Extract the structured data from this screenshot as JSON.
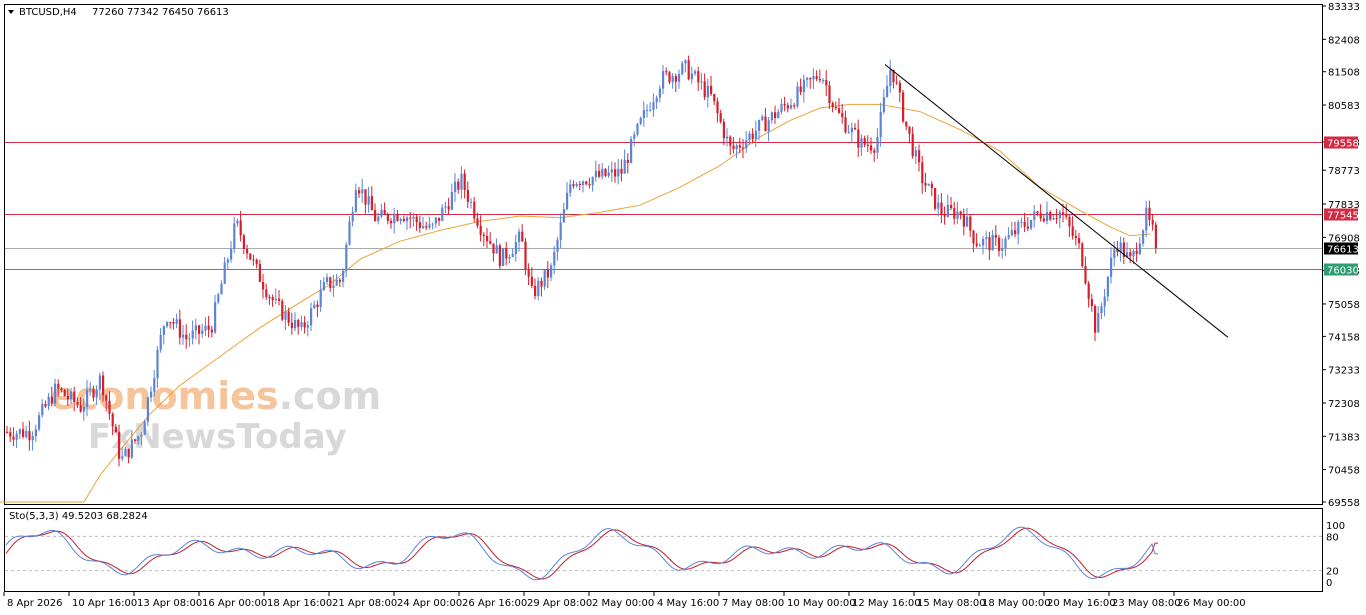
{
  "header": {
    "symbol": "BTCUSD,H4",
    "ohlc": "77260 77342 76450 76613"
  },
  "watermark": {
    "line1a": "economies",
    "line1b": ".com",
    "line2": "FxNewsToday",
    "color1": "#f5c49a",
    "color2": "#d8d8d8"
  },
  "colors": {
    "bull": "#5b84d6",
    "bear": "#d71e2b",
    "ma": "#e8a53a",
    "resistance": "#d12a43",
    "support": "#2e9e72",
    "current": "#aaaaaa",
    "trendline": "#000000",
    "stoch_main": "#5b84d6",
    "stoch_signal": "#c41e2c"
  },
  "chart_data": {
    "type": "candlestick",
    "y_range": [
      69558,
      83333
    ],
    "price_ticks": [
      "83333",
      "82408",
      "81508",
      "80583",
      "79558",
      "78773",
      "77833",
      "76908",
      "75983",
      "75058",
      "74158",
      "73233",
      "72308",
      "71383",
      "70458",
      "69558"
    ],
    "x_ticks": [
      "8 Apr 2026",
      "10 Apr 16:00",
      "13 Apr 08:00",
      "16 Apr 00:00",
      "18 Apr 16:00",
      "21 Apr 08:00",
      "24 Apr 00:00",
      "26 Apr 16:00",
      "29 Apr 08:00",
      "2 May 00:00",
      "4 May 16:00",
      "7 May 08:00",
      "10 May 00:00",
      "12 May 16:00",
      "15 May 08:00",
      "18 May 00:00",
      "20 May 16:00",
      "23 May 08:00",
      "26 May 00:00"
    ],
    "moving_average": [
      [
        0,
        69558
      ],
      [
        84,
        69558
      ],
      [
        100,
        70300
      ],
      [
        120,
        71000
      ],
      [
        150,
        72000
      ],
      [
        180,
        72800
      ],
      [
        220,
        73600
      ],
      [
        260,
        74400
      ],
      [
        300,
        75100
      ],
      [
        330,
        75600
      ],
      [
        360,
        76300
      ],
      [
        400,
        76800
      ],
      [
        440,
        77100
      ],
      [
        480,
        77350
      ],
      [
        520,
        77500
      ],
      [
        560,
        77450
      ],
      [
        600,
        77600
      ],
      [
        640,
        77800
      ],
      [
        680,
        78300
      ],
      [
        720,
        78900
      ],
      [
        760,
        79700
      ],
      [
        790,
        80150
      ],
      [
        820,
        80500
      ],
      [
        850,
        80600
      ],
      [
        880,
        80600
      ],
      [
        920,
        80400
      ],
      [
        960,
        79900
      ],
      [
        1000,
        79300
      ],
      [
        1040,
        78300
      ],
      [
        1080,
        77650
      ],
      [
        1110,
        77200
      ],
      [
        1130,
        76950
      ],
      [
        1150,
        77000
      ]
    ],
    "key_points": [
      [
        5,
        71500
      ],
      [
        30,
        71500
      ],
      [
        55,
        72700
      ],
      [
        80,
        72200
      ],
      [
        100,
        73000
      ],
      [
        120,
        70700
      ],
      [
        140,
        71500
      ],
      [
        165,
        74800
      ],
      [
        185,
        74100
      ],
      [
        210,
        74400
      ],
      [
        235,
        77300
      ],
      [
        255,
        76000
      ],
      [
        275,
        75000
      ],
      [
        300,
        74300
      ],
      [
        325,
        75600
      ],
      [
        340,
        75700
      ],
      [
        355,
        78500
      ],
      [
        375,
        77400
      ],
      [
        400,
        77600
      ],
      [
        430,
        77100
      ],
      [
        460,
        78500
      ],
      [
        480,
        77200
      ],
      [
        500,
        76300
      ],
      [
        520,
        76900
      ],
      [
        530,
        75300
      ],
      [
        550,
        76000
      ],
      [
        570,
        78500
      ],
      [
        600,
        78600
      ],
      [
        620,
        78700
      ],
      [
        640,
        80100
      ],
      [
        660,
        81300
      ],
      [
        685,
        81600
      ],
      [
        710,
        80800
      ],
      [
        730,
        79300
      ],
      [
        760,
        80000
      ],
      [
        790,
        80700
      ],
      [
        820,
        81500
      ],
      [
        835,
        80400
      ],
      [
        860,
        79500
      ],
      [
        875,
        79500
      ],
      [
        890,
        81700
      ],
      [
        905,
        80000
      ],
      [
        920,
        78600
      ],
      [
        940,
        77600
      ],
      [
        960,
        77600
      ],
      [
        975,
        76800
      ],
      [
        1000,
        76700
      ],
      [
        1020,
        77200
      ],
      [
        1040,
        77600
      ],
      [
        1060,
        77600
      ],
      [
        1080,
        76500
      ],
      [
        1095,
        74300
      ],
      [
        1105,
        75600
      ],
      [
        1115,
        76800
      ],
      [
        1130,
        76200
      ],
      [
        1145,
        77500
      ],
      [
        1158,
        76613
      ]
    ],
    "levels": [
      {
        "label": "79558",
        "price": 79558,
        "role": "resistance"
      },
      {
        "label": "77545",
        "price": 77545,
        "role": "resistance"
      },
      {
        "label": "76613",
        "price": 76613,
        "role": "current"
      },
      {
        "label": "76030",
        "price": 76030,
        "role": "support"
      }
    ],
    "trendline": {
      "from": [
        885,
        81708
      ],
      "to": [
        1228,
        74132
      ]
    },
    "stochastic": {
      "title": "Sto(5,3,3) 49.5203 68.2824",
      "main": 49.5203,
      "signal": 68.2824,
      "range": [
        0,
        100
      ],
      "ticks": [
        "100",
        "80",
        "20",
        "0"
      ],
      "levels": [
        80,
        20
      ]
    }
  }
}
